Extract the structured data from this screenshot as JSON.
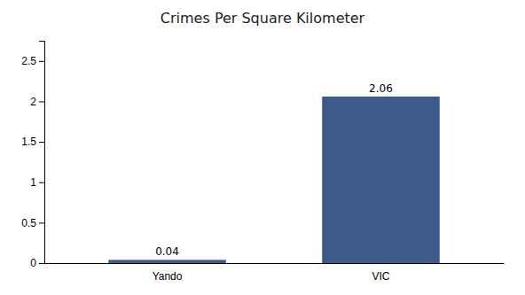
{
  "chart_data": {
    "type": "bar",
    "title": "Crimes Per Square Kilometer",
    "categories": [
      "Yando",
      "VIC"
    ],
    "values": [
      0.04,
      2.06
    ],
    "color": "#3d5a8a",
    "ylim": [
      0,
      2.75
    ],
    "yticks": [
      0,
      0.5,
      1,
      1.5,
      2,
      2.5
    ],
    "grid": false,
    "data_labels": true
  }
}
